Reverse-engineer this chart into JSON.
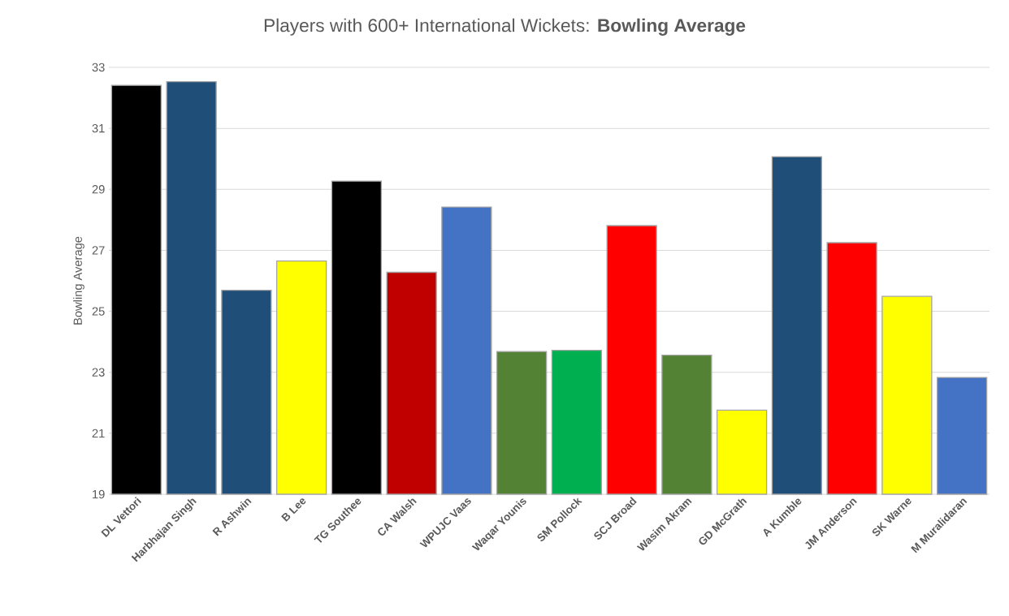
{
  "chart_data": {
    "type": "bar",
    "title": "Players with 600+ International Wickets: **Bowling Average**",
    "ylabel": "Bowling Average",
    "categories": [
      "DL Vettori",
      "Harbhajan Singh",
      "R Ashwin",
      "B Lee",
      "TG Southee",
      "CA Walsh",
      "WPUJC Vaas",
      "Waqar Younis",
      "SM Pollock",
      "SCJ Broad",
      "Wasim Akram",
      "GD McGrath",
      "A Kumble",
      "JM Anderson",
      "SK Warne",
      "M Muralidaran"
    ],
    "values": [
      32.41,
      32.53,
      25.69,
      26.65,
      29.27,
      26.28,
      28.42,
      23.68,
      23.72,
      27.81,
      23.56,
      21.76,
      30.07,
      27.25,
      25.49,
      22.83
    ],
    "colors": [
      "#000000",
      "#1f4e79",
      "#1f4e79",
      "#ffff00",
      "#000000",
      "#c00000",
      "#4472c4",
      "#548235",
      "#00b050",
      "#ff0000",
      "#548235",
      "#ffff00",
      "#1f4e79",
      "#ff0000",
      "#ffff00",
      "#4472c4"
    ],
    "ylim": [
      19,
      33
    ],
    "yticks": [
      19,
      21,
      23,
      25,
      27,
      29,
      31,
      33
    ],
    "grid": "y"
  }
}
